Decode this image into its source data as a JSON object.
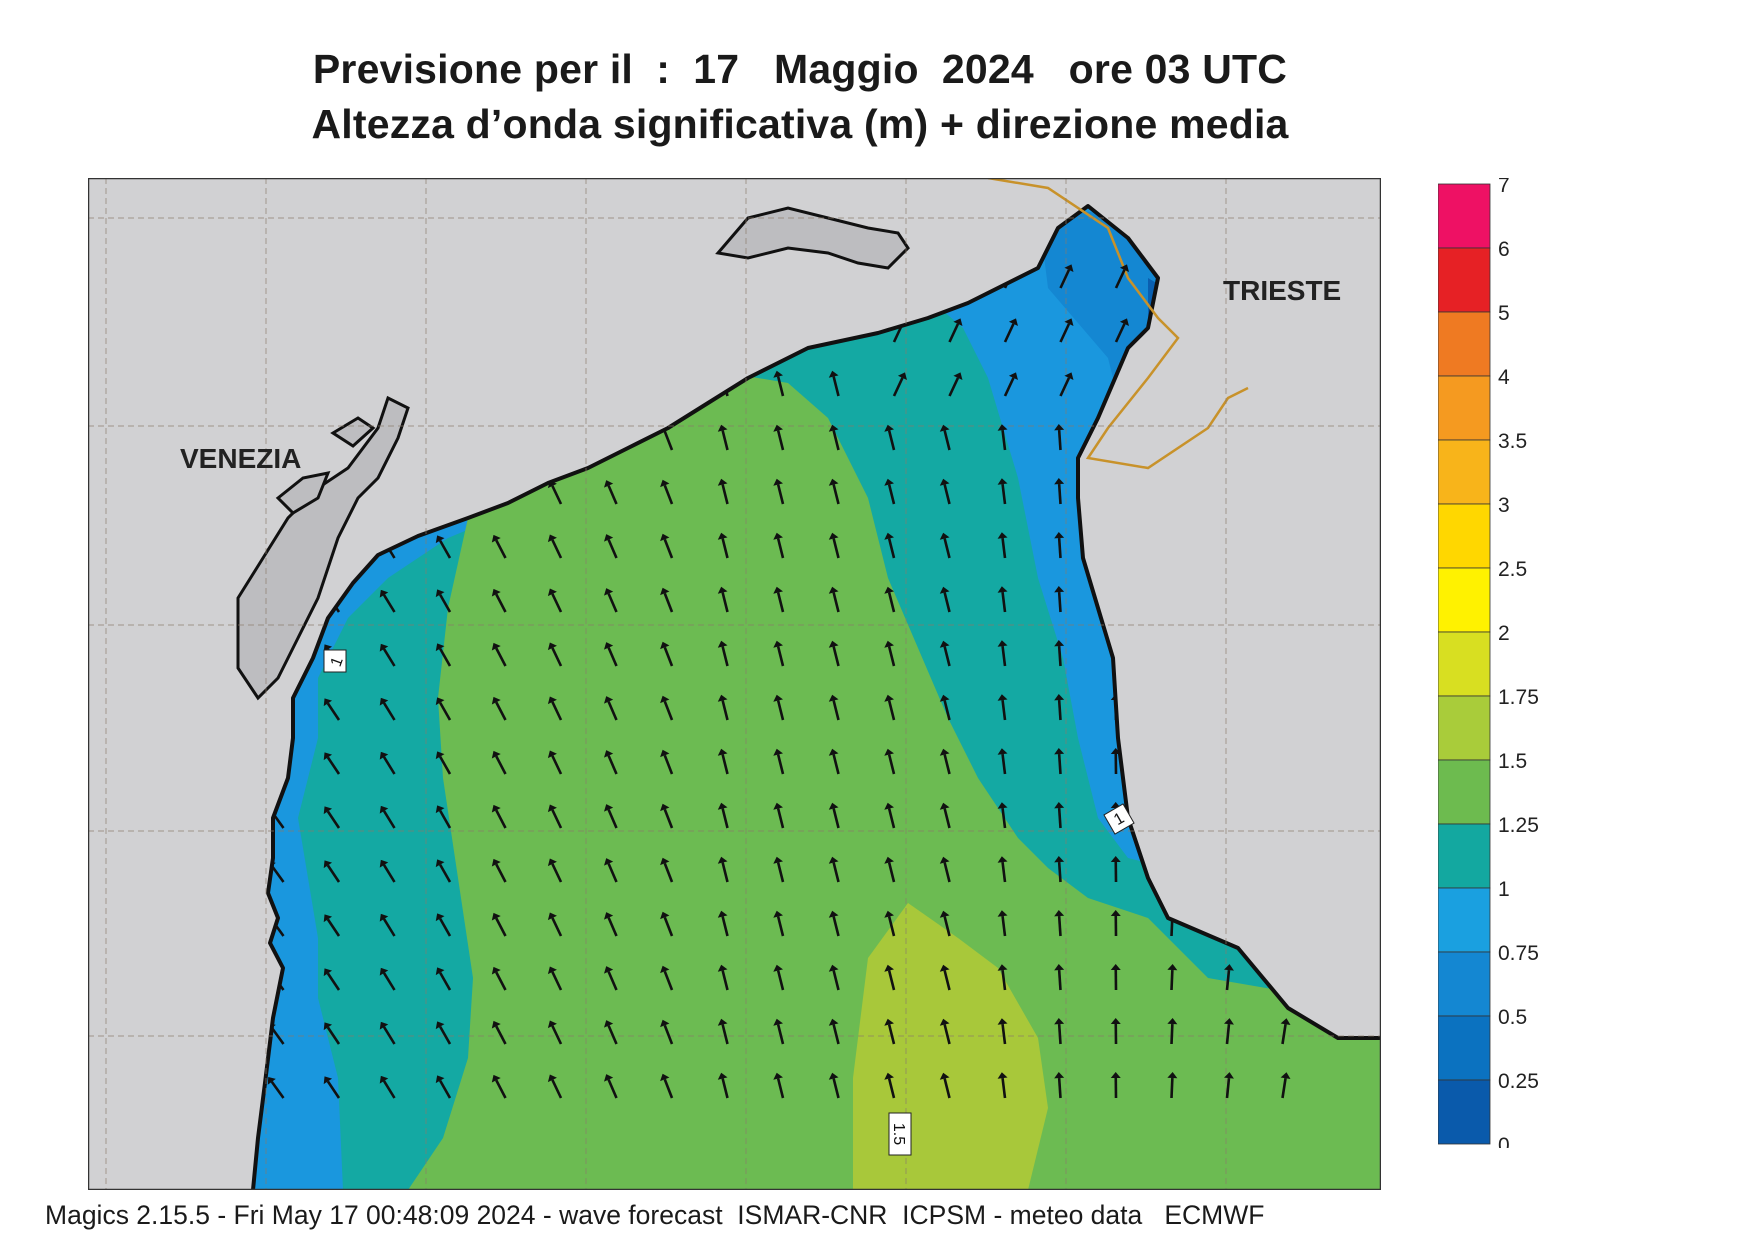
{
  "title": {
    "line1": "Previsione per il  :  17   Maggio  2024   ore 03 UTC",
    "line2": "Altezza d’onda significativa (m) + direzione media"
  },
  "places": [
    {
      "name": "VENEZIA"
    },
    {
      "name": "TRIESTE"
    }
  ],
  "contour_labels": [
    "1",
    "1",
    "1.5"
  ],
  "colors": {
    "land": "#d1d1d3",
    "coast": "#111111",
    "border": "#c8922a",
    "grid": "#8a7a6a",
    "band_0_05": "#0a5fb0",
    "band_05_075": "#1277c8",
    "band_075_1": "#1a97de",
    "band_1_125": "#14a9a3",
    "band_125_15": "#6cbb52",
    "band_15_175": "#a8c83a"
  },
  "legend": {
    "ticks": [
      "7",
      "6",
      "5",
      "4",
      "3.5",
      "3",
      "2.5",
      "2",
      "1.75",
      "1.5",
      "1.25",
      "1",
      "0.75",
      "0.5",
      "0.25",
      "0"
    ],
    "colors": [
      "#ee1164",
      "#e62125",
      "#ef7a22",
      "#f59a20",
      "#f8b41a",
      "#ffd700",
      "#fff200",
      "#d8df21",
      "#a9cc3a",
      "#6dbb4f",
      "#13a8a0",
      "#1aa0e0",
      "#1487d2",
      "#0b72c0",
      "#0a5aab"
    ]
  },
  "arrows": {
    "direction": "mean wave direction (propagating toward N/NW)"
  },
  "footer": "Magics 2.15.5 - Fri May 17 00:48:09 2024 - wave forecast  ISMAR-CNR  ICPSM - meteo data   ECMWF"
}
